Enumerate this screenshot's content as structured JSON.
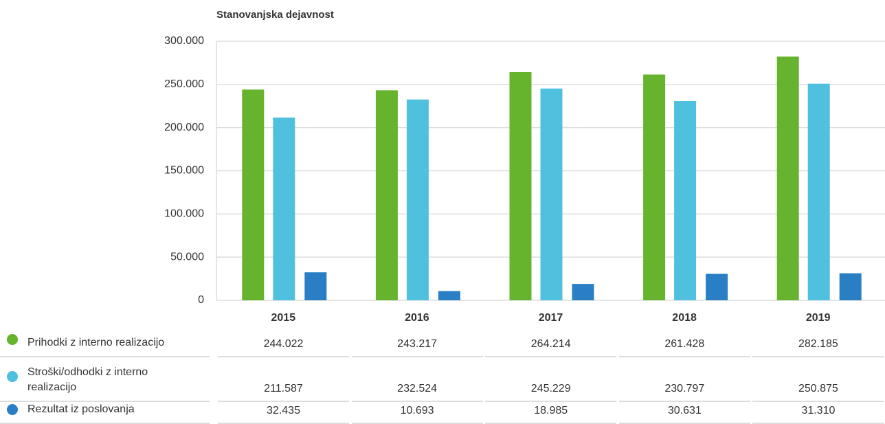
{
  "chart_data": {
    "type": "bar",
    "title": "Stanovanjska dejavnost",
    "categories": [
      "2015",
      "2016",
      "2017",
      "2018",
      "2019"
    ],
    "series": [
      {
        "name": "Prihodki z interno realizacijo",
        "color": "#66b32e",
        "values": [
          244022,
          243217,
          264214,
          261428,
          282185
        ],
        "value_labels": [
          "244.022",
          "243.217",
          "264.214",
          "261.428",
          "282.185"
        ]
      },
      {
        "name": "Stroški/odhodki z interno realizacijo",
        "color": "#4fc0dd",
        "values": [
          211587,
          232524,
          245229,
          230797,
          250875
        ],
        "value_labels": [
          "211.587",
          "232.524",
          "245.229",
          "230.797",
          "250.875"
        ]
      },
      {
        "name": "Rezultat iz poslovanja",
        "color": "#2a7fc4",
        "values": [
          32435,
          10693,
          18985,
          30631,
          31310
        ],
        "value_labels": [
          "32.435",
          "10.693",
          "18.985",
          "30.631",
          "31.310"
        ]
      }
    ],
    "ylim": [
      0,
      300000
    ],
    "yticks": [
      0,
      {
        "value": 50000,
        "label": "50.000"
      },
      {
        "value": 100000,
        "label": "100.000"
      },
      {
        "value": 150000,
        "label": "150.000"
      },
      {
        "value": 200000,
        "label": "200.000"
      },
      {
        "value": 250000,
        "label": "250.000"
      },
      {
        "value": 300000,
        "label": "300.000"
      }
    ],
    "grid": true
  }
}
